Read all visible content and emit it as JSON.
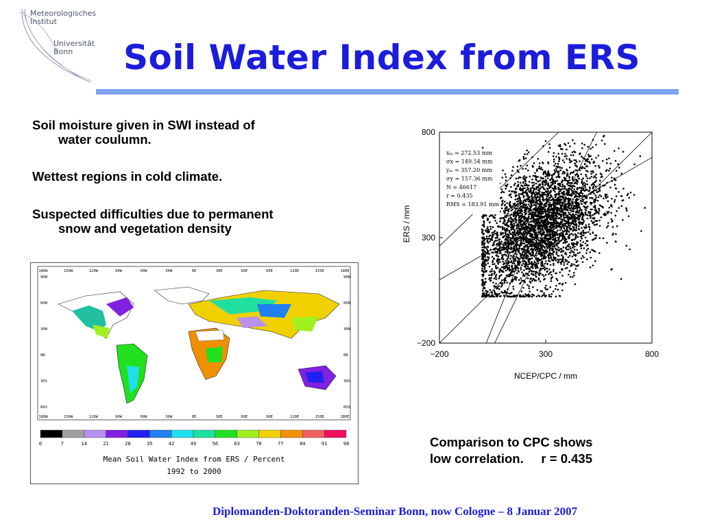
{
  "logo": {
    "line1": "Meteorologisches",
    "line2": "Institut",
    "line3": "Universität",
    "line4": "Bonn"
  },
  "title": "Soil Water Index from ERS",
  "bullets": [
    {
      "line1": "Soil moisture given in SWI instead of",
      "line2": "water coulumn."
    },
    {
      "line1": "Wettest regions in cold climate.",
      "line2": ""
    },
    {
      "line1": "Suspected difficulties due to permanent",
      "line2": "snow and vegetation density"
    }
  ],
  "map": {
    "lon_labels": [
      "180W",
      "150W",
      "120W",
      "90W",
      "60W",
      "30W",
      "0E",
      "30E",
      "60E",
      "90E",
      "120E",
      "150E",
      "180E"
    ],
    "lat_labels_left": [
      "90N",
      "60N",
      "30N",
      "0N",
      "30S",
      "60S"
    ],
    "lat_labels_right": [
      "90N",
      "60N",
      "30N",
      "0N",
      "30S",
      "60S"
    ],
    "colorbar_ticks": [
      "0",
      "7",
      "14",
      "21",
      "28",
      "35",
      "42",
      "49",
      "56",
      "63",
      "70",
      "77",
      "84",
      "91",
      "98"
    ],
    "colorbar_colors": [
      "#000000",
      "#a0a0a0",
      "#b890f0",
      "#8020e0",
      "#2020f0",
      "#2080f0",
      "#20e0f0",
      "#20e0a0",
      "#20e020",
      "#a0f020",
      "#f0d000",
      "#f09000",
      "#f06060",
      "#f01060"
    ],
    "title_line1": "Mean Soil Water Index from ERS / Percent",
    "title_line2": "1992 to 2000"
  },
  "chart_data": {
    "type": "scatter",
    "xlabel": "NCEP/CPC   / mm",
    "ylabel": "ERS   / mm",
    "xlim": [
      -200,
      800
    ],
    "ylim": [
      -200,
      800
    ],
    "xticks": [
      "−200",
      "300",
      "800"
    ],
    "yticks": [
      "−200",
      "300",
      "800"
    ],
    "stats": [
      {
        "label": "xₘ = 272.53 mm"
      },
      {
        "label": "σx = 149.54 mm"
      },
      {
        "label": "yₘ = 357.20 mm"
      },
      {
        "label": "σy = 157.36 mm"
      },
      {
        "label": "N = 46617"
      },
      {
        "label": "r = 0.435"
      },
      {
        "label": "RMS = 183.91 mm"
      }
    ],
    "r": 0.435,
    "n": 46617,
    "x_mean": 272.53,
    "x_sd": 149.54,
    "y_mean": 357.2,
    "y_sd": 157.36,
    "rms": 183.91
  },
  "caption": {
    "line1": "Comparison to CPC shows",
    "line2": "low correlation.     r = 0.435"
  },
  "footer": "Diplomanden-Doktoranden-Seminar Bonn, now Cologne – 8 Januar 2007",
  "colors": {
    "title": "#1c1cdc",
    "rule": "#7ea2ee",
    "footer": "#1c1cdc"
  }
}
